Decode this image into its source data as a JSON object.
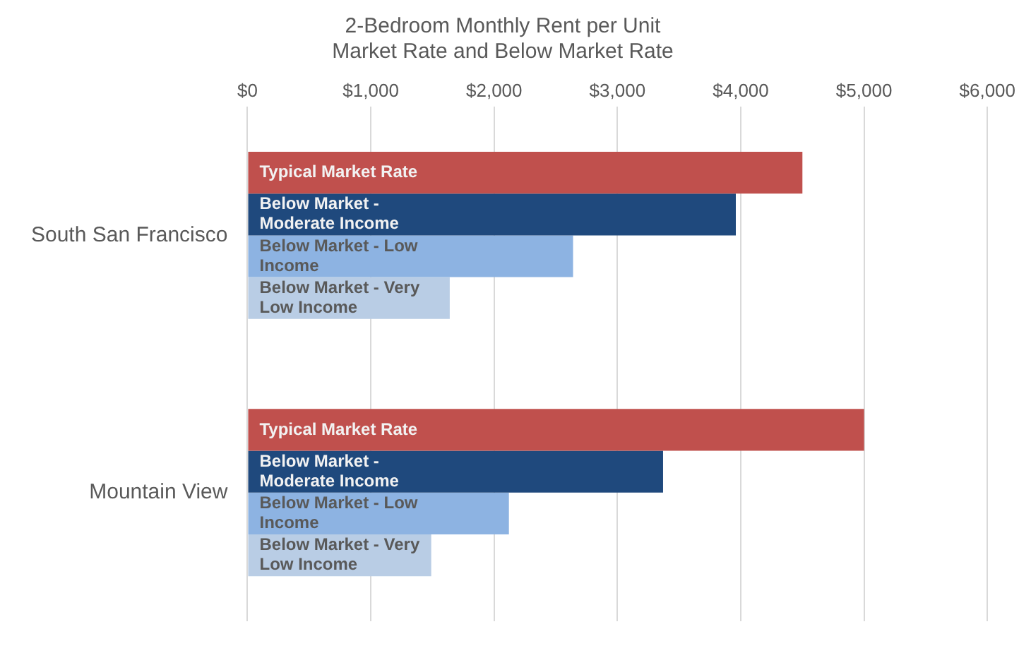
{
  "chart_data": {
    "type": "bar",
    "orientation": "horizontal",
    "title": [
      "2-Bedroom Monthly Rent per Unit",
      "Market Rate and Below Market Rate"
    ],
    "categories": [
      "South San Francisco",
      "Mountain View"
    ],
    "series": [
      {
        "name": "Typical Market Rate",
        "color": "#c0504d",
        "values": [
          4500,
          5000
        ]
      },
      {
        "name": "Below Market - Moderate Income",
        "color": "#1f497d",
        "values": [
          3960,
          3370
        ]
      },
      {
        "name": "Below Market - Low Income",
        "color": "#8db3e2",
        "values": [
          2640,
          2120
        ]
      },
      {
        "name": "Below Market - Very Low Income",
        "color": "#b9cde5",
        "values": [
          1640,
          1490
        ]
      }
    ],
    "xlim": [
      0,
      6000
    ],
    "xticks": [
      {
        "value": 0,
        "label": "$0"
      },
      {
        "value": 1000,
        "label": "$1,000"
      },
      {
        "value": 2000,
        "label": "$2,000"
      },
      {
        "value": 3000,
        "label": "$3,000"
      },
      {
        "value": 4000,
        "label": "$4,000"
      },
      {
        "value": 5000,
        "label": "$5,000"
      },
      {
        "value": 6000,
        "label": "$6,000"
      }
    ],
    "grid": "x",
    "legend": false
  }
}
